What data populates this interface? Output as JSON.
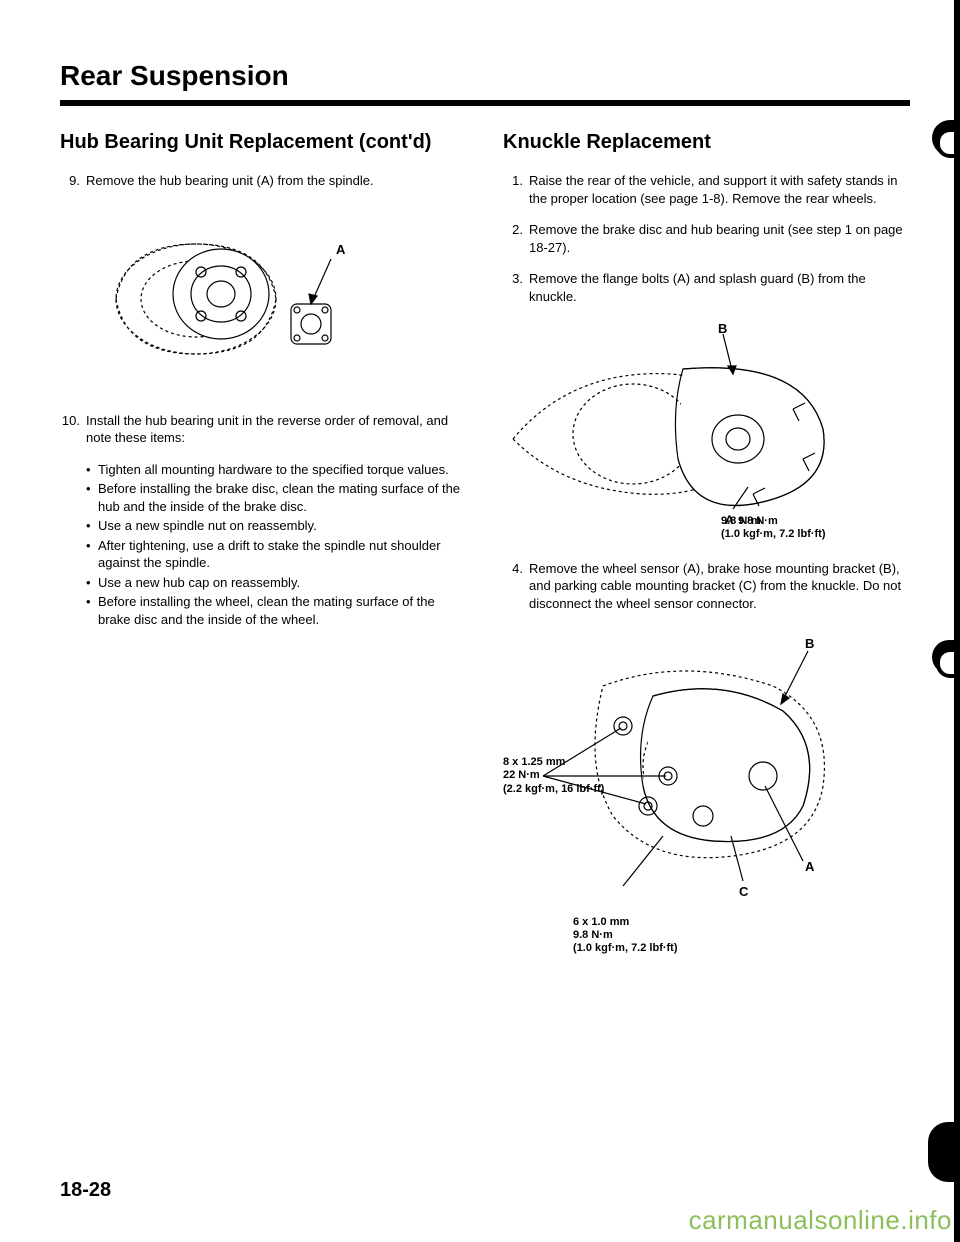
{
  "page": {
    "title": "Rear Suspension",
    "number": "18-28",
    "watermark": "carmanualsonline.info"
  },
  "left": {
    "heading": "Hub Bearing Unit Replacement (cont'd)",
    "steps": [
      {
        "n": "9.",
        "text": "Remove the hub bearing unit (A) from the spindle."
      },
      {
        "n": "10.",
        "text": "Install the hub bearing unit in the reverse order of removal, and note these items:"
      }
    ],
    "bullets": [
      "Tighten all mounting hardware to the specified torque values.",
      "Before installing the brake disc, clean the mating surface of the hub and the inside of the brake disc.",
      "Use a new spindle nut on reassembly.",
      "After tightening, use a drift to stake the spindle nut shoulder against the spindle.",
      "Use a new hub cap on reassembly.",
      "Before installing the wheel, clean the mating surface of the brake disc and the inside of the wheel."
    ],
    "figure1": {
      "label_A": "A"
    }
  },
  "right": {
    "heading": "Knuckle Replacement",
    "steps": [
      {
        "n": "1.",
        "text": "Raise the rear of the vehicle, and support it with safety stands in the proper location (see page 1-8). Remove the rear wheels."
      },
      {
        "n": "2.",
        "text": "Remove the brake disc and hub bearing unit (see step 1 on page 18-27)."
      },
      {
        "n": "3.",
        "text": "Remove the flange bolts (A) and splash guard (B) from the knuckle."
      },
      {
        "n": "4.",
        "text": "Remove the wheel sensor (A), brake hose mounting bracket (B), and parking cable mounting bracket (C) from the knuckle. Do not disconnect the wheel sensor connector."
      }
    ],
    "figure2": {
      "label_A": "A",
      "label_B": "B",
      "torque": "9.8 N·m\n(1.0 kgf·m, 7.2 lbf·ft)"
    },
    "figure3": {
      "label_A": "A",
      "label_B": "B",
      "label_C": "C",
      "torque1": "8 x 1.25 mm\n22 N·m\n(2.2 kgf·m, 16 lbf·ft)",
      "torque2": "6 x 1.0 mm\n9.8 N·m\n(1.0 kgf·m, 7.2 lbf·ft)"
    }
  }
}
